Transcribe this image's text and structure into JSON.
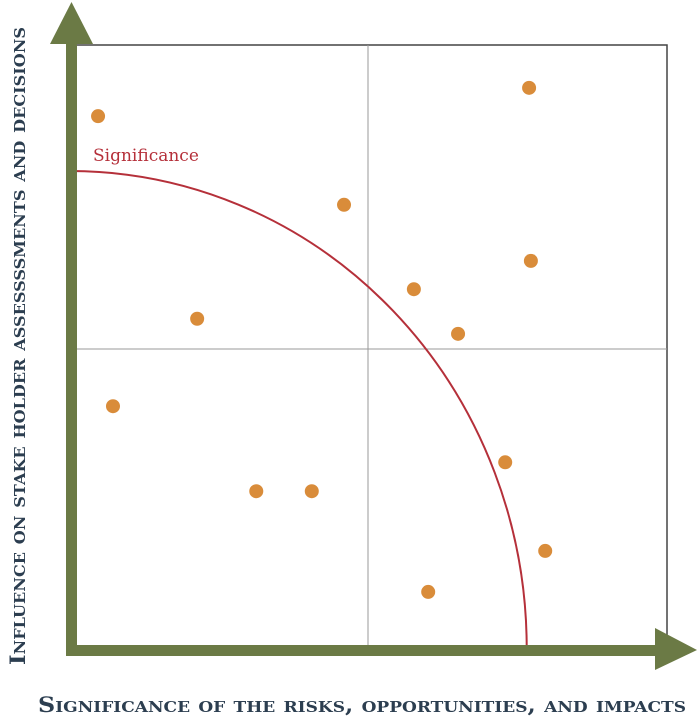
{
  "chart_data": {
    "type": "scatter",
    "title": "",
    "xlabel": "Significance of the risks, opportunities, and impacts",
    "ylabel": "Influence on stake holder assessssments and decisions",
    "xlim": [
      0,
      100
    ],
    "ylim": [
      0,
      100
    ],
    "quadrant_dividers": {
      "x": 50,
      "y": 50
    },
    "curve": {
      "label": "Significance",
      "shape": "quarter-ellipse",
      "x_intercept": 76.5,
      "y_intercept": 79.1
    },
    "points": [
      {
        "x": 4.7,
        "y": 88.2
      },
      {
        "x": 76.9,
        "y": 92.9
      },
      {
        "x": 45.9,
        "y": 73.5
      },
      {
        "x": 77.2,
        "y": 64.2
      },
      {
        "x": 57.6,
        "y": 59.5
      },
      {
        "x": 21.3,
        "y": 54.6
      },
      {
        "x": 65.0,
        "y": 52.1
      },
      {
        "x": 7.2,
        "y": 40.1
      },
      {
        "x": 72.9,
        "y": 30.8
      },
      {
        "x": 31.2,
        "y": 26.0
      },
      {
        "x": 40.5,
        "y": 26.0
      },
      {
        "x": 79.6,
        "y": 16.1
      },
      {
        "x": 60.0,
        "y": 9.3
      }
    ],
    "colors": {
      "axis": "#6b7a45",
      "point": "#d98c3a",
      "curve": "#b5303a",
      "label": "#2c3e50",
      "grid": "#999999",
      "frame": "#444444"
    }
  }
}
